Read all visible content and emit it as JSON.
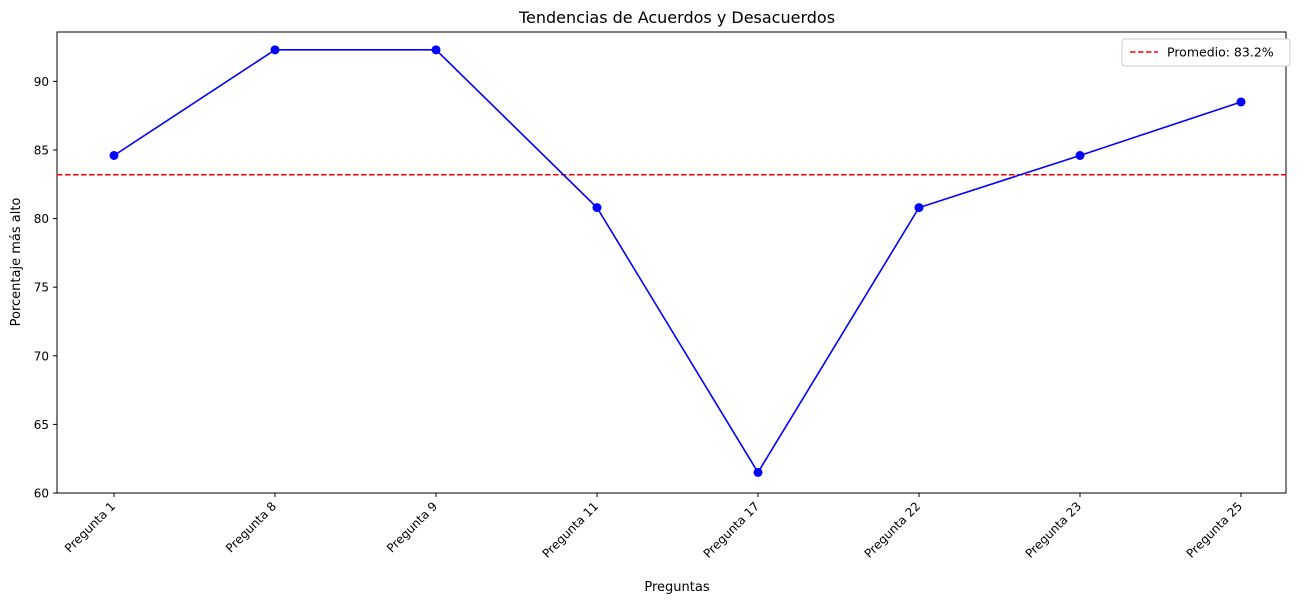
{
  "chart_data": {
    "type": "line",
    "title": "Tendencias de Acuerdos y Desacuerdos",
    "xlabel": "Preguntas",
    "ylabel": "Porcentaje más alto",
    "categories": [
      "Pregunta 1",
      "Pregunta 8",
      "Pregunta 9",
      "Pregunta 11",
      "Pregunta 17",
      "Pregunta 22",
      "Pregunta 23",
      "Pregunta 25"
    ],
    "series": [
      {
        "values": [
          84.6,
          92.3,
          92.3,
          80.8,
          61.5,
          80.8,
          84.6,
          88.5
        ],
        "color": "#0000ff",
        "marker": "circle"
      }
    ],
    "reference_line": {
      "value": 83.2,
      "label": "Promedio: 83.2%",
      "color": "#ff0000",
      "style": "dashed"
    },
    "yticks": [
      60,
      65,
      70,
      75,
      80,
      85,
      90
    ],
    "ylim": [
      60,
      93.6
    ],
    "grid": false,
    "legend_position": "top-right"
  }
}
